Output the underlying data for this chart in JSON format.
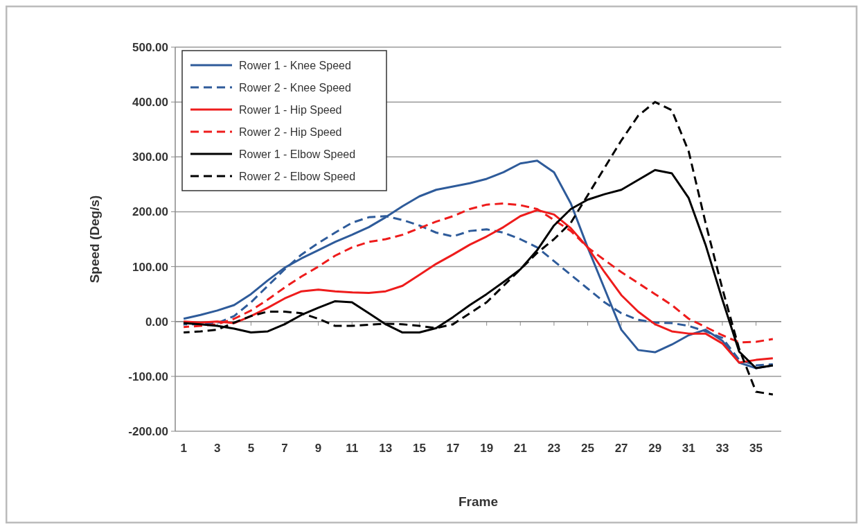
{
  "chart_data": {
    "type": "line",
    "xlabel": "Frame",
    "ylabel": "Speed (Deg/s)",
    "x": [
      1,
      2,
      3,
      4,
      5,
      6,
      7,
      8,
      9,
      10,
      11,
      12,
      13,
      14,
      15,
      16,
      17,
      18,
      19,
      20,
      21,
      22,
      23,
      24,
      25,
      26,
      27,
      28,
      29,
      30,
      31,
      32,
      33,
      34,
      35,
      36
    ],
    "xlim": [
      0.5,
      36.5
    ],
    "xticks": [
      1,
      3,
      5,
      7,
      9,
      11,
      13,
      15,
      17,
      19,
      21,
      23,
      25,
      27,
      29,
      31,
      33,
      35
    ],
    "ylim": [
      -200,
      500
    ],
    "yticks": [
      {
        "value": -200,
        "label": "-200.00"
      },
      {
        "value": -100,
        "label": "-100.00"
      },
      {
        "value": 0,
        "label": "0.00"
      },
      {
        "value": 100,
        "label": "100.00"
      },
      {
        "value": 200,
        "label": "200.00"
      },
      {
        "value": 300,
        "label": "300.00"
      },
      {
        "value": 400,
        "label": "400.00"
      },
      {
        "value": 500,
        "label": "500.00"
      }
    ],
    "grid": "y",
    "legend": "top left",
    "marker": "none",
    "series": [
      {
        "name": "Rower 1 - Knee Speed",
        "color": "#2e5b9a",
        "line_style": "solid",
        "values": [
          5,
          12,
          20,
          30,
          50,
          75,
          98,
          115,
          130,
          145,
          158,
          172,
          190,
          210,
          228,
          240,
          246,
          252,
          260,
          272,
          288,
          293,
          272,
          215,
          135,
          60,
          -15,
          -52,
          -56,
          -42,
          -25,
          -15,
          -35,
          -75,
          -85,
          -80
        ]
      },
      {
        "name": "Rower 2 - Knee Speed",
        "color": "#2e5b9a",
        "line_style": "dashed",
        "values": [
          -5,
          -5,
          -3,
          10,
          35,
          65,
          95,
          122,
          143,
          162,
          180,
          190,
          192,
          185,
          175,
          162,
          155,
          165,
          168,
          162,
          150,
          135,
          110,
          85,
          60,
          35,
          15,
          3,
          -2,
          -3,
          -8,
          -18,
          -30,
          -70,
          -80,
          -78
        ]
      },
      {
        "name": "Rower 1 - Hip Speed",
        "color": "#ee1c1c",
        "line_style": "solid",
        "values": [
          0,
          -2,
          0,
          -3,
          10,
          25,
          42,
          55,
          58,
          55,
          53,
          52,
          55,
          65,
          85,
          105,
          122,
          140,
          155,
          172,
          192,
          203,
          195,
          170,
          135,
          90,
          48,
          18,
          -5,
          -18,
          -22,
          -22,
          -40,
          -75,
          -70,
          -67
        ]
      },
      {
        "name": "Rower 2 - Hip Speed",
        "color": "#ee1c1c",
        "line_style": "dashed",
        "values": [
          -10,
          -8,
          -5,
          5,
          20,
          40,
          62,
          82,
          100,
          120,
          135,
          145,
          150,
          158,
          170,
          182,
          192,
          205,
          213,
          215,
          212,
          205,
          185,
          165,
          135,
          112,
          90,
          70,
          50,
          30,
          5,
          -10,
          -25,
          -38,
          -37,
          -32
        ]
      },
      {
        "name": "Rower 1 - Elbow Speed",
        "color": "#000000",
        "line_style": "solid",
        "values": [
          -3,
          -5,
          -8,
          -13,
          -20,
          -18,
          -5,
          12,
          25,
          37,
          35,
          15,
          -5,
          -20,
          -20,
          -12,
          8,
          30,
          50,
          72,
          95,
          130,
          175,
          205,
          222,
          232,
          240,
          258,
          276,
          270,
          225,
          140,
          40,
          -55,
          -85,
          -80
        ]
      },
      {
        "name": "Rower 2 - Elbow Speed",
        "color": "#000000",
        "line_style": "dashed",
        "values": [
          -20,
          -18,
          -15,
          -2,
          10,
          18,
          18,
          15,
          5,
          -8,
          -8,
          -6,
          -4,
          -5,
          -8,
          -12,
          -5,
          15,
          35,
          65,
          95,
          125,
          150,
          180,
          230,
          280,
          330,
          375,
          400,
          385,
          310,
          180,
          60,
          -50,
          -128,
          -133
        ]
      }
    ]
  }
}
